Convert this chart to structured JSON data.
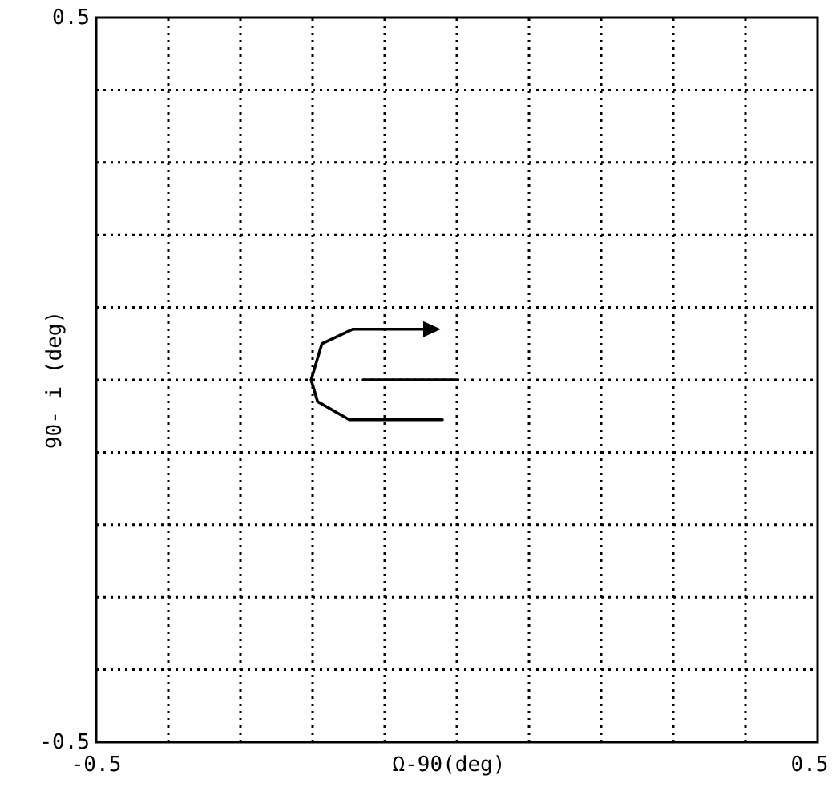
{
  "chart_data": {
    "type": "line",
    "xlabel": "Ω-90(deg)",
    "ylabel": "90- i (deg)",
    "xlim": [
      -0.5,
      0.5
    ],
    "ylim": [
      -0.5,
      0.5
    ],
    "xticks": [
      {
        "value": -0.5,
        "label": "-0.5"
      },
      {
        "value": -0.4,
        "label": null
      },
      {
        "value": -0.3,
        "label": null
      },
      {
        "value": -0.2,
        "label": null
      },
      {
        "value": -0.1,
        "label": null
      },
      {
        "value": 0,
        "label": null
      },
      {
        "value": 0.1,
        "label": null
      },
      {
        "value": 0.2,
        "label": null
      },
      {
        "value": 0.3,
        "label": null
      },
      {
        "value": 0.4,
        "label": null
      },
      {
        "value": 0.5,
        "label": "0.5"
      }
    ],
    "yticks": [
      {
        "value": -0.5,
        "label": "-0.5"
      },
      {
        "value": -0.4,
        "label": null
      },
      {
        "value": -0.3,
        "label": null
      },
      {
        "value": -0.2,
        "label": null
      },
      {
        "value": -0.1,
        "label": null
      },
      {
        "value": 0,
        "label": null
      },
      {
        "value": 0.1,
        "label": null
      },
      {
        "value": 0.2,
        "label": null
      },
      {
        "value": 0.3,
        "label": null
      },
      {
        "value": 0.4,
        "label": null
      },
      {
        "value": 0.5,
        "label": "0.5"
      }
    ],
    "grid": true,
    "line_style": "solid",
    "marker": "none",
    "series": [
      {
        "color": "#000000",
        "x": [
          -0.02,
          -0.149,
          -0.193,
          -0.202,
          -0.187,
          -0.144,
          -0.04
        ],
        "values": [
          -0.055,
          -0.055,
          -0.03,
          0,
          0.05,
          0.07,
          0.07
        ]
      },
      {
        "color": "#000000",
        "x": [
          -0.13,
          0
        ],
        "values": [
          0,
          0
        ]
      }
    ]
  }
}
